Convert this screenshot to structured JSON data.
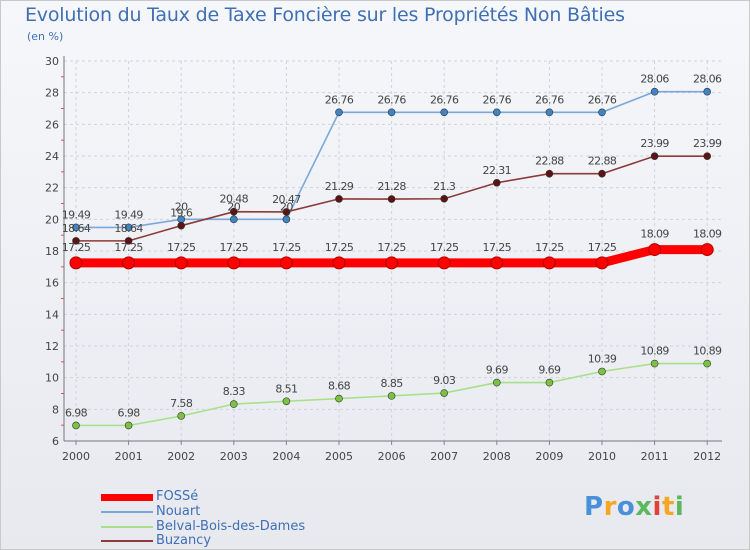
{
  "header": {
    "title": "Evolution du Taux de Taxe Foncière sur les Propriétés Non Bâties",
    "unit": "(en %)"
  },
  "chart_data": {
    "type": "line",
    "title": "Evolution du Taux de Taxe Foncière sur les Propriétés Non Bâties",
    "ylabel": "(en %)",
    "xlabel": "",
    "x": [
      "2000",
      "2001",
      "2002",
      "2003",
      "2004",
      "2005",
      "2006",
      "2007",
      "2008",
      "2009",
      "2010",
      "2011",
      "2012"
    ],
    "ylim": [
      6,
      30
    ],
    "yticks": [
      6,
      8,
      10,
      12,
      14,
      16,
      18,
      20,
      22,
      24,
      26,
      28,
      30
    ],
    "grid": true,
    "legend_position": "bottom-left",
    "series": [
      {
        "name": "FOSSé",
        "color": "#ff0000",
        "highlight": true,
        "values": [
          17.25,
          17.25,
          17.25,
          17.25,
          17.25,
          17.25,
          17.25,
          17.25,
          17.25,
          17.25,
          17.25,
          18.09,
          18.09
        ],
        "labels": [
          "17.25",
          "17.25",
          "17.25",
          "17.25",
          "17.25",
          "17.25",
          "17.25",
          "17.25",
          "17.25",
          "17.25",
          "17.25",
          "18.09",
          "18.09"
        ]
      },
      {
        "name": "Nouart",
        "color": "#7aa9d9",
        "marker_color": "#3d85c6",
        "values": [
          19.49,
          19.49,
          20,
          20,
          20,
          26.76,
          26.76,
          26.76,
          26.76,
          26.76,
          26.76,
          28.06,
          28.06
        ],
        "labels": [
          "19.49",
          "19.49",
          "20",
          "20",
          "20",
          "26.76",
          "26.76",
          "26.76",
          "26.76",
          "26.76",
          "26.76",
          "28.06",
          "28.06"
        ]
      },
      {
        "name": "Belval-Bois-des-Dames",
        "color": "#a8e08a",
        "marker_color": "#7cc242",
        "values": [
          6.98,
          6.98,
          7.58,
          8.33,
          8.51,
          8.68,
          8.85,
          9.03,
          9.69,
          9.69,
          10.39,
          10.89,
          10.89
        ],
        "labels": [
          "6.98",
          "6.98",
          "7.58",
          "8.33",
          "8.51",
          "8.68",
          "8.85",
          "9.03",
          "9.69",
          "9.69",
          "10.39",
          "10.89",
          "10.89"
        ]
      },
      {
        "name": "Buzancy",
        "color": "#8c3a3a",
        "marker_color": "#5a1414",
        "values": [
          18.64,
          18.64,
          19.6,
          20.48,
          20.47,
          21.29,
          21.28,
          21.3,
          22.31,
          22.88,
          22.88,
          23.99,
          23.99
        ],
        "labels": [
          "18.64",
          "18.64",
          "19.6",
          "20.48",
          "20.47",
          "21.29",
          "21.28",
          "21.3",
          "22.31",
          "22.88",
          "22.88",
          "23.99",
          "23.99"
        ]
      }
    ]
  },
  "logo": {
    "text": "Proxiti",
    "letter_colors": [
      "#4a90d9",
      "#f5a623",
      "#4a90d9",
      "#5cb85c",
      "#e0433a",
      "#f5a623",
      "#5cb85c"
    ]
  }
}
